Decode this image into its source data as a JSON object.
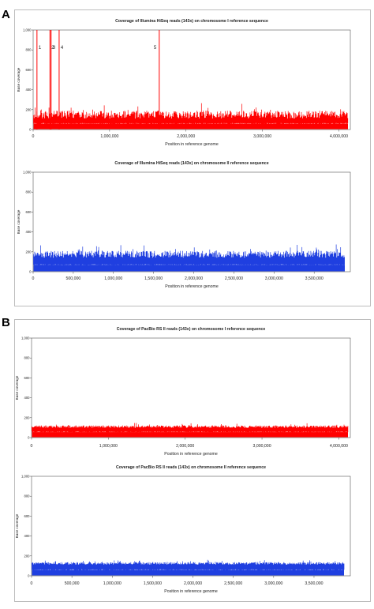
{
  "panels": [
    {
      "label": "A"
    },
    {
      "label": "B"
    }
  ],
  "colors": {
    "chromosome_I": "#ff0000",
    "chromosome_II": "#1f3fe0"
  },
  "chart_data": [
    {
      "panel": "A",
      "type": "area",
      "title": "Coverage of Illumina HiSeq reads (143x) on chromosome I reference sequence",
      "xlabel": "Position in reference genome",
      "ylabel": "Base coverage",
      "x_range": [
        0,
        4150000
      ],
      "ylim": [
        0,
        1000
      ],
      "xticks": [
        "0",
        "1,000,000",
        "2,000,000",
        "3,000,000",
        "4,000,000"
      ],
      "xtick_values": [
        0,
        1000000,
        2000000,
        3000000,
        4000000
      ],
      "yticks": [
        "0",
        "200",
        "400",
        "600",
        "800",
        "1,000"
      ],
      "ytick_values": [
        0,
        200,
        400,
        600,
        800,
        1000
      ],
      "series": [
        {
          "color": "#ff0000",
          "typical": 150,
          "spread": 80,
          "band_bottom": 60
        }
      ],
      "peaks": [
        {
          "label": "1",
          "x": 50000,
          "y": 1000
        },
        {
          "label": "2",
          "x": 220000,
          "y": 1000
        },
        {
          "label": "3",
          "x": 235000,
          "y": 1000
        },
        {
          "label": "4",
          "x": 340000,
          "y": 1000
        },
        {
          "label": "5",
          "x": 1650000,
          "y": 1000
        }
      ],
      "grid": false
    },
    {
      "panel": "A",
      "type": "area",
      "title": "Coverage of Illumina HiSeq reads (143x) on chromosome II reference sequence",
      "xlabel": "Position in reference genome",
      "ylabel": "Base coverage",
      "x_range": [
        0,
        3950000
      ],
      "ylim": [
        0,
        1000
      ],
      "xticks": [
        "0",
        "500,000",
        "1,000,000",
        "1,500,000",
        "2,000,000",
        "2,500,000",
        "3,000,000",
        "3,500,000"
      ],
      "xtick_values": [
        0,
        500000,
        1000000,
        1500000,
        2000000,
        2500000,
        3000000,
        3500000
      ],
      "yticks": [
        "0",
        "200",
        "400",
        "600",
        "800",
        "1,000"
      ],
      "ytick_values": [
        0,
        200,
        400,
        600,
        800,
        1000
      ],
      "series": [
        {
          "color": "#1f3fe0",
          "typical": 175,
          "spread": 70,
          "band_bottom": 70
        }
      ],
      "peaks": [],
      "grid": false
    },
    {
      "panel": "B",
      "type": "area",
      "title": "Coverage of PacBio RS II reads (143x) on chromosome I reference sequence",
      "xlabel": "Position in reference genome",
      "ylabel": "Base coverage",
      "x_range": [
        0,
        4150000
      ],
      "ylim": [
        0,
        1000
      ],
      "xticks": [
        "0",
        "1,000,000",
        "2,000,000",
        "3,000,000",
        "4,000,000"
      ],
      "xtick_values": [
        0,
        1000000,
        2000000,
        3000000,
        4000000
      ],
      "yticks": [
        "0",
        "200",
        "400",
        "600",
        "800",
        "1,000"
      ],
      "ytick_values": [
        0,
        200,
        400,
        600,
        800,
        1000
      ],
      "series": [
        {
          "color": "#ff0000",
          "typical": 110,
          "spread": 25,
          "band_bottom": 55
        }
      ],
      "peaks": [],
      "grid": false
    },
    {
      "panel": "B",
      "type": "area",
      "title": "Coverage of PacBio RS II reads (143x) on chromosome II reference sequence",
      "xlabel": "Position in reference genome",
      "ylabel": "Base coverage",
      "x_range": [
        0,
        3950000
      ],
      "ylim": [
        0,
        1000
      ],
      "xticks": [
        "0",
        "500,000",
        "1,000,000",
        "1,500,000",
        "2,000,000",
        "2,500,000",
        "3,000,000",
        "3,500,000"
      ],
      "xtick_values": [
        0,
        500000,
        1000000,
        1500000,
        2000000,
        2500000,
        3000000,
        3500000
      ],
      "yticks": [
        "0",
        "200",
        "400",
        "600",
        "800",
        "1,000"
      ],
      "ytick_values": [
        0,
        200,
        400,
        600,
        800,
        1000
      ],
      "series": [
        {
          "color": "#1f3fe0",
          "typical": 125,
          "spread": 25,
          "band_bottom": 60
        }
      ],
      "peaks": [],
      "grid": false
    }
  ]
}
